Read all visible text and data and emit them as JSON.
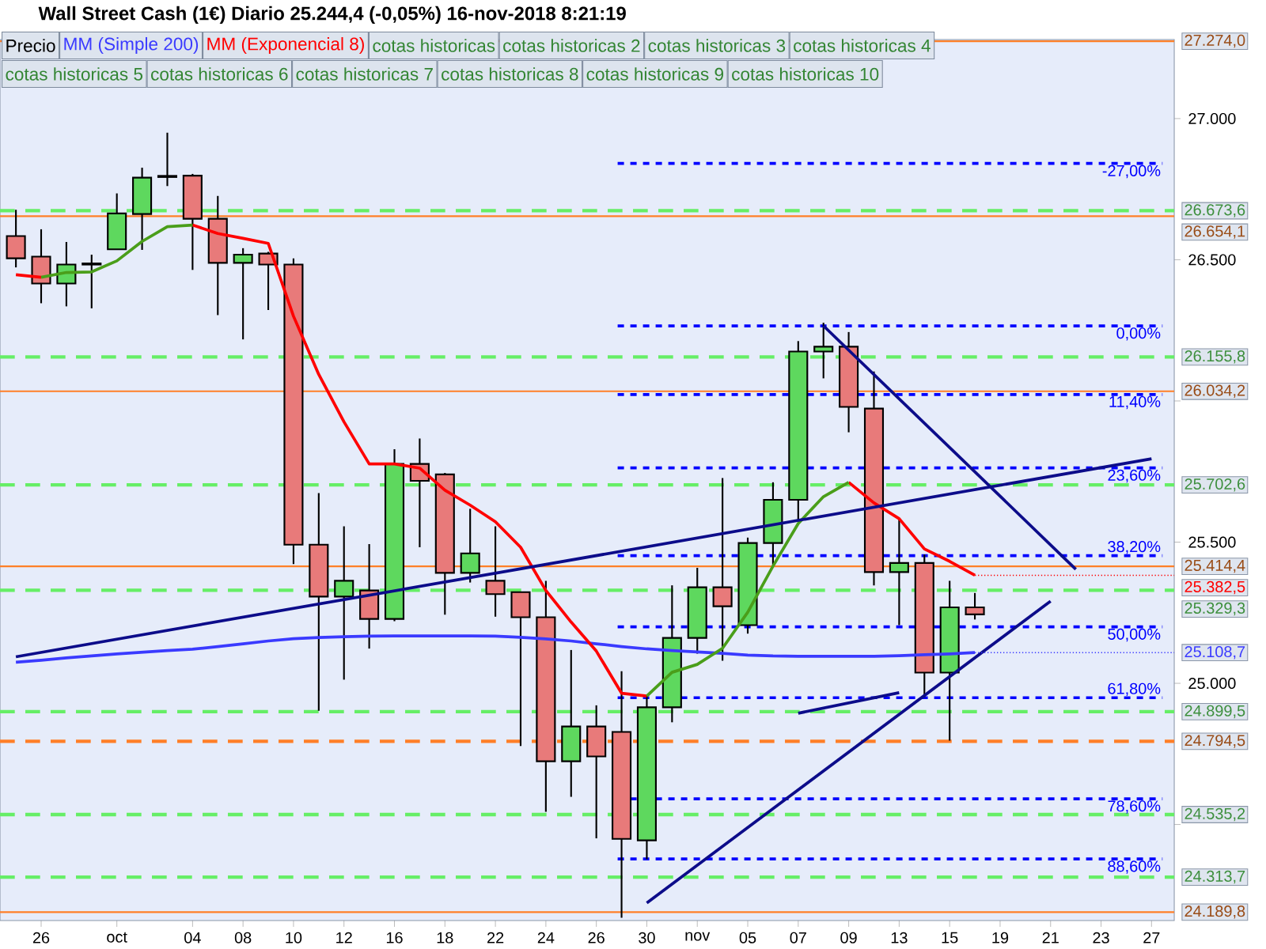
{
  "chart_data": {
    "type": "candlestick",
    "title": "Wall Street Cash (1€)   Diario   25.244,4 (-0,05%)   16-nov-2018 8:21:19",
    "categories": [
      null,
      "26",
      null,
      null,
      "oct",
      null,
      null,
      "04",
      null,
      "08",
      null,
      "10",
      null,
      "12",
      null,
      "16",
      null,
      "18",
      null,
      "22",
      null,
      "24",
      null,
      "26",
      null,
      "30",
      null,
      "nov",
      null,
      "05",
      null,
      "07",
      null,
      "09",
      null,
      "13",
      null,
      "15",
      null,
      "19",
      null,
      "21",
      null,
      "23",
      null,
      "27"
    ],
    "ylim": [
      24160,
      27280
    ],
    "yticks": [
      {
        "value": 24500,
        "label": null
      },
      {
        "value": 25000,
        "label": "25.000"
      },
      {
        "value": 25500,
        "label": "25.500"
      },
      {
        "value": 26000,
        "label": null
      },
      {
        "value": 26500,
        "label": "26.500"
      },
      {
        "value": 27000,
        "label": "27.000"
      }
    ],
    "legend": "top left",
    "series": [
      {
        "name": "Precio",
        "colors": [
          "#e87a7a",
          "#e87a7a",
          "#5ed85e",
          "#000000",
          "#5ed85e",
          "#5ed85e",
          "#000000",
          "#e87a7a",
          "#e87a7a",
          "#5ed85e",
          "#e87a7a",
          "#e87a7a",
          "#e87a7a",
          "#5ed85e",
          "#e87a7a",
          "#5ed85e",
          "#e87a7a",
          "#e87a7a",
          "#5ed85e",
          "#e87a7a",
          "#e87a7a",
          "#e87a7a",
          "#5ed85e",
          "#e87a7a",
          "#e87a7a",
          "#5ed85e",
          "#5ed85e",
          "#5ed85e",
          "#e87a7a",
          "#5ed85e",
          "#5ed85e",
          "#5ed85e",
          "#5ed85e",
          "#e87a7a",
          "#e87a7a",
          "#5ed85e",
          "#e87a7a",
          "#5ed85e",
          "#e87a7a",
          null,
          null,
          null,
          null,
          null,
          null,
          null
        ],
        "ohlc": [
          [
            26584,
            26677,
            26473,
            26505
          ],
          [
            26511,
            26608,
            26346,
            26416
          ],
          [
            26416,
            26563,
            26335,
            26483
          ],
          [
            26483,
            26518,
            26328,
            26487
          ],
          [
            26537,
            26735,
            26537,
            26664
          ],
          [
            26662,
            26826,
            26535,
            26791
          ],
          [
            26793,
            26950,
            26761,
            26797
          ],
          [
            26798,
            26804,
            26464,
            26645
          ],
          [
            26645,
            26726,
            26304,
            26489
          ],
          [
            26489,
            26541,
            26218,
            26518
          ],
          [
            26522,
            26528,
            26322,
            26483
          ],
          [
            26483,
            26505,
            25422,
            25491
          ],
          [
            25491,
            25674,
            24903,
            25307
          ],
          [
            25307,
            25556,
            25013,
            25363
          ],
          [
            25329,
            25493,
            25123,
            25228
          ],
          [
            25228,
            25829,
            25220,
            25777
          ],
          [
            25777,
            25867,
            25482,
            25717
          ],
          [
            25740,
            25745,
            25243,
            25391
          ],
          [
            25391,
            25618,
            25357,
            25460
          ],
          [
            25363,
            25556,
            25236,
            25316
          ],
          [
            25323,
            25325,
            24778,
            25234
          ],
          [
            25234,
            25363,
            24545,
            24724
          ],
          [
            24724,
            25118,
            24598,
            24847
          ],
          [
            24847,
            24922,
            24451,
            24741
          ],
          [
            24828,
            25043,
            24170,
            24449
          ],
          [
            24444,
            24955,
            24377,
            24915
          ],
          [
            24915,
            25347,
            24862,
            25161
          ],
          [
            25161,
            25409,
            25105,
            25340
          ],
          [
            25340,
            25727,
            25080,
            25273
          ],
          [
            25206,
            25516,
            25176,
            25497
          ],
          [
            25497,
            25712,
            25413,
            25650
          ],
          [
            25650,
            26212,
            25577,
            26175
          ],
          [
            26175,
            26277,
            26080,
            26192
          ],
          [
            26192,
            26244,
            25889,
            25979
          ],
          [
            25973,
            26104,
            25347,
            25394
          ],
          [
            25394,
            25581,
            25206,
            25426
          ],
          [
            25426,
            25456,
            24950,
            25038
          ],
          [
            25038,
            25363,
            24797,
            25269
          ],
          [
            25269,
            25320,
            25226,
            25244
          ],
          null,
          null,
          null,
          null,
          null,
          null,
          null
        ]
      },
      {
        "name": "MM (Simple 200)",
        "type": "line",
        "color": "#3a3aff",
        "values": [
          25075,
          25082,
          25090,
          25097,
          25104,
          25110,
          25116,
          25121,
          25130,
          25140,
          25150,
          25158,
          25162,
          25165,
          25167,
          25168,
          25168,
          25168,
          25168,
          25167,
          25163,
          25157,
          25150,
          25140,
          25130,
          25122,
          25116,
          25111,
          25106,
          25100,
          25097,
          25096,
          25096,
          25096,
          25096,
          25098,
          25101,
          25104,
          25108.7,
          null,
          null,
          null,
          null,
          null,
          null,
          null
        ],
        "value_labels": [
          null,
          null,
          null,
          null,
          null,
          null,
          null,
          null,
          null,
          null,
          null,
          null,
          null,
          null,
          null,
          null,
          null,
          null,
          null,
          null,
          null,
          null,
          null,
          null,
          null,
          null,
          null,
          null,
          null,
          null,
          null,
          null,
          null,
          null,
          null,
          null,
          null,
          null,
          "25.108,7",
          null,
          null,
          null,
          null,
          null,
          null,
          null
        ]
      },
      {
        "name": "MM (Exponencial 8)",
        "type": "line",
        "color": "#ff0000",
        "values": [
          null,
          null,
          null,
          null,
          null,
          null,
          null,
          26623,
          26593,
          26576,
          26558,
          26300,
          26094,
          25926,
          25777,
          25777,
          25762,
          25684,
          25631,
          25572,
          25482,
          25329,
          25217,
          25114,
          24965,
          24955,
          null,
          null,
          null,
          null,
          null,
          null,
          null,
          null,
          null,
          null,
          null,
          null,
          null,
          null,
          null,
          null,
          null,
          null,
          null,
          null
        ]
      },
      {
        "type": "line",
        "color": "#ff0000",
        "values": [
          26447,
          26438,
          null,
          null,
          null,
          null,
          null,
          null,
          null,
          null,
          null,
          null,
          null,
          null,
          null,
          null,
          null,
          null,
          null,
          null,
          null,
          null,
          null,
          null,
          null,
          null,
          null,
          null,
          null,
          null,
          null,
          null,
          null,
          null,
          null,
          null,
          null,
          null,
          null,
          null,
          null,
          null,
          null,
          null,
          null,
          null
        ]
      },
      {
        "type": "line",
        "color": "#ff0000",
        "values": [
          null,
          null,
          null,
          null,
          null,
          null,
          null,
          null,
          null,
          null,
          null,
          null,
          null,
          null,
          null,
          null,
          null,
          null,
          null,
          null,
          null,
          null,
          null,
          null,
          null,
          null,
          null,
          null,
          null,
          null,
          null,
          null,
          null,
          25712,
          25639,
          25583,
          25476,
          25432,
          25382.5,
          null,
          null,
          null,
          null,
          null,
          null,
          null
        ],
        "value_labels": [
          null,
          null,
          null,
          null,
          null,
          null,
          null,
          null,
          null,
          null,
          null,
          null,
          null,
          null,
          null,
          null,
          null,
          null,
          null,
          null,
          null,
          null,
          null,
          null,
          null,
          null,
          null,
          null,
          null,
          null,
          null,
          null,
          null,
          null,
          null,
          null,
          null,
          null,
          "25.382,5",
          null,
          null,
          null,
          null,
          null,
          null,
          null
        ]
      },
      {
        "type": "line",
        "color": "#4a9e1a",
        "values": [
          null,
          26438,
          26455,
          26457,
          26496,
          26565,
          26617,
          26623,
          null,
          null,
          null,
          null,
          null,
          null,
          null,
          null,
          null,
          null,
          null,
          null,
          null,
          null,
          null,
          null,
          null,
          null,
          null,
          null,
          null,
          null,
          null,
          null,
          null,
          null,
          null,
          null,
          null,
          null,
          null,
          null,
          null,
          null,
          null,
          null,
          null,
          null
        ]
      },
      {
        "type": "line",
        "color": "#4a9e1a",
        "values": [
          null,
          null,
          null,
          null,
          null,
          null,
          null,
          null,
          null,
          null,
          null,
          null,
          null,
          null,
          null,
          null,
          null,
          null,
          null,
          null,
          null,
          null,
          null,
          null,
          null,
          24955,
          25039,
          25067,
          25124,
          25252,
          25415,
          25566,
          25661,
          25712,
          null,
          null,
          null,
          null,
          null,
          null,
          null,
          null,
          null,
          null,
          null,
          null
        ]
      },
      {
        "type": "line",
        "color": "#0c0c8a",
        "values": [
          25094,
          null,
          null,
          null,
          null,
          null,
          null,
          null,
          null,
          null,
          null,
          null,
          null,
          null,
          null,
          null,
          null,
          null,
          null,
          null,
          null,
          null,
          null,
          null,
          null,
          null,
          null,
          null,
          null,
          null,
          null,
          null,
          null,
          null,
          null,
          null,
          null,
          null,
          null,
          null,
          null,
          null,
          null,
          null,
          null,
          25795
        ]
      },
      {
        "type": "line",
        "color": "#0c0c8a",
        "values": [
          null,
          null,
          null,
          null,
          null,
          null,
          null,
          null,
          null,
          null,
          null,
          null,
          null,
          null,
          null,
          null,
          null,
          null,
          null,
          null,
          null,
          null,
          null,
          null,
          null,
          null,
          null,
          null,
          null,
          null,
          null,
          null,
          26266,
          null,
          null,
          null,
          null,
          null,
          null,
          null,
          null,
          null,
          25404,
          null,
          null,
          null
        ]
      },
      {
        "type": "line",
        "color": "#0c0c8a",
        "values": [
          null,
          null,
          null,
          null,
          null,
          null,
          null,
          null,
          null,
          null,
          null,
          null,
          null,
          null,
          null,
          null,
          null,
          null,
          null,
          null,
          null,
          null,
          null,
          null,
          null,
          24222,
          null,
          null,
          null,
          null,
          null,
          null,
          null,
          null,
          null,
          null,
          null,
          null,
          null,
          null,
          null,
          25291,
          null,
          null,
          null,
          null
        ]
      },
      {
        "type": "line",
        "color": "#0c0c8a",
        "values": [
          null,
          null,
          null,
          null,
          null,
          null,
          null,
          null,
          null,
          null,
          null,
          null,
          null,
          null,
          null,
          null,
          null,
          null,
          null,
          null,
          null,
          null,
          null,
          null,
          null,
          null,
          null,
          null,
          null,
          null,
          null,
          24894,
          null,
          null,
          null,
          24967,
          null,
          null,
          null,
          null,
          null,
          null,
          null,
          null,
          null,
          null
        ]
      }
    ],
    "ref_lines": [
      {
        "axis": "y",
        "value": 27274.0,
        "label": "27.274,0",
        "color": "#ff7f27",
        "line_style": "solid"
      },
      {
        "axis": "y",
        "value": 26673.6,
        "label": "26.673,6",
        "color": "#66ee66",
        "line_style": "dashed"
      },
      {
        "axis": "y",
        "value": 26654.1,
        "label": "26.654,1",
        "color": "#ff7f27",
        "line_style": "solid"
      },
      {
        "axis": "y",
        "value": 26155.8,
        "label": "26.155,8",
        "color": "#66ee66",
        "line_style": "dashed"
      },
      {
        "axis": "y",
        "value": 26034.2,
        "label": "26.034,2",
        "color": "#ff7f27",
        "line_style": "solid"
      },
      {
        "axis": "y",
        "value": 25702.6,
        "label": "25.702,6",
        "color": "#66ee66",
        "line_style": "dashed"
      },
      {
        "axis": "y",
        "value": 25414.4,
        "label": "25.414,4",
        "color": "#ff7f27",
        "line_style": "solid"
      },
      {
        "axis": "y",
        "value": 25329.3,
        "label": "25.329,3",
        "color": "#66ee66",
        "line_style": "dashed"
      },
      {
        "axis": "y",
        "value": 24899.5,
        "label": "24.899,5",
        "color": "#66ee66",
        "line_style": "dashed"
      },
      {
        "axis": "y",
        "value": 24794.5,
        "label": "24.794,5",
        "color": "#ff7f27",
        "line_style": "dashed"
      },
      {
        "axis": "y",
        "value": 24535.2,
        "label": "24.535,2",
        "color": "#66ee66",
        "line_style": "dashed"
      },
      {
        "axis": "y",
        "value": 24313.7,
        "label": "24.313,7",
        "color": "#66ee66",
        "line_style": "dashed"
      },
      {
        "axis": "y",
        "value": 24189.8,
        "label": "24.189,8",
        "color": "#ff7f27",
        "line_style": "solid"
      },
      {
        "axis": "y",
        "value": 26841,
        "color": "#0000ff",
        "line_style": "dotted"
      },
      {
        "axis": "y",
        "value": 26266,
        "color": "#0000ff",
        "line_style": "dotted"
      },
      {
        "axis": "y",
        "value": 26023,
        "color": "#0000ff",
        "line_style": "dotted"
      },
      {
        "axis": "y",
        "value": 25763,
        "color": "#0000ff",
        "line_style": "dotted"
      },
      {
        "axis": "y",
        "value": 25452,
        "color": "#0000ff",
        "line_style": "dotted"
      },
      {
        "axis": "y",
        "value": 25200,
        "color": "#0000ff",
        "line_style": "dotted"
      },
      {
        "axis": "y",
        "value": 24949,
        "color": "#0000ff",
        "line_style": "dotted"
      },
      {
        "axis": "y",
        "value": 24591,
        "color": "#0000ff",
        "line_style": "dotted"
      },
      {
        "axis": "y",
        "value": 24378,
        "color": "#0000ff",
        "line_style": "dotted"
      }
    ],
    "annotations": [
      "cotas historicas",
      "cotas historicas 2",
      "cotas historicas 3",
      "cotas historicas 4",
      "cotas historicas 5",
      "cotas historicas 6",
      "cotas historicas 7",
      "cotas historicas 8",
      "cotas historicas 9",
      "cotas historicas 10",
      {
        "text": "-27,00%",
        "y": 26841
      },
      {
        "text": "0,00%",
        "y": 26266
      },
      {
        "text": "11,40%",
        "y": 26023
      },
      {
        "text": "23,60%",
        "y": 25763
      },
      {
        "text": "38,20%",
        "y": 25452
      },
      {
        "text": "50,00%",
        "y": 25200
      },
      {
        "text": "61,80%",
        "y": 24949
      },
      {
        "text": "78,60%",
        "y": 24591
      },
      {
        "text": "88,60%",
        "y": 24378
      }
    ]
  }
}
